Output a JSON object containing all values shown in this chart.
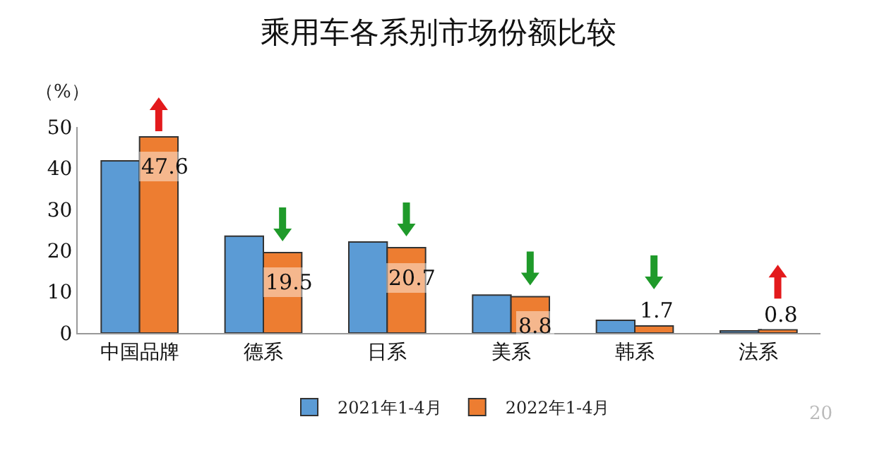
{
  "chart_data": {
    "type": "bar",
    "title": "乘用车各系别市场份额比较",
    "ylabel": "（%）",
    "categories": [
      "中国品牌",
      "德系",
      "日系",
      "美系",
      "韩系",
      "法系"
    ],
    "series": [
      {
        "name": "2021年1-4月",
        "color": "#5b9bd5",
        "values": [
          41.8,
          23.5,
          22.1,
          9.2,
          3.1,
          0.5
        ]
      },
      {
        "name": "2022年1-4月",
        "color": "#ed7d31",
        "values": [
          47.6,
          19.5,
          20.7,
          8.8,
          1.7,
          0.8
        ],
        "value_labels": [
          "47.6",
          "19.5",
          "20.7",
          "8.8",
          "1.7",
          "0.8"
        ]
      }
    ],
    "ylim": [
      0,
      50
    ],
    "yticks": [
      0,
      10,
      20,
      30,
      40,
      50
    ],
    "grid": false,
    "legend": "bottom",
    "annotations": [
      "20"
    ]
  }
}
